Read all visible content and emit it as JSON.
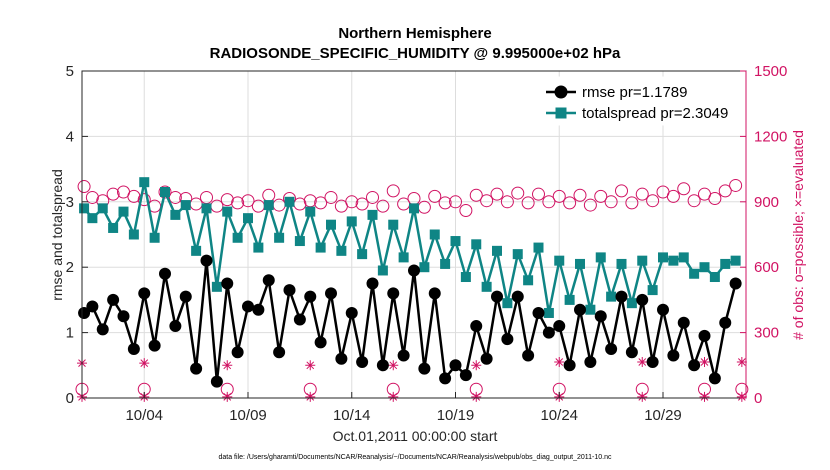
{
  "colors": {
    "rmse": "#000000",
    "spread": "#0f8585",
    "obs": "#d11363",
    "axis": "#262626"
  },
  "chart_data": {
    "type": "line",
    "title": "Northern Hemisphere",
    "subtitle": "RADIOSONDE_SPECIFIC_HUMIDITY @ 9.995000e+02 hPa",
    "xlabel": "Oct.01,2011 00:00:00 start",
    "ylabel": "rmse and totalspread",
    "y2label": "# of obs: o=possible; ×=evaluated",
    "footnote": "data file: /Users/gharamti/Documents/NCAR/Reanalysis/~/Documents/NCAR/Reanalysis/webpub/obs_diag_output_2011-10.nc",
    "xlim": [
      1,
      33
    ],
    "ylim": [
      0,
      5
    ],
    "y2lim": [
      0,
      1500
    ],
    "x_ticks": [
      4,
      9,
      14,
      19,
      24,
      29
    ],
    "x_tick_labels": [
      "10/04",
      "10/09",
      "10/14",
      "10/19",
      "10/24",
      "10/29"
    ],
    "y_ticks": [
      0,
      1,
      2,
      3,
      4,
      5
    ],
    "y_tick_labels": [
      "0",
      "1",
      "2",
      "3",
      "4",
      "5"
    ],
    "y2_ticks": [
      0,
      300,
      600,
      900,
      1200,
      1500
    ],
    "y2_tick_labels": [
      "0",
      "300",
      "600",
      "900",
      "1200",
      "1500"
    ],
    "legend": [
      {
        "label": "rmse pr=1.1789",
        "series": "rmse"
      },
      {
        "label": "totalspread pr=2.3049",
        "series": "totalspread"
      }
    ],
    "legend_position": "top-right",
    "grid": true,
    "series_generation_note": "",
    "series": [
      {
        "name": "rmse",
        "axis": "left",
        "marker": "circle",
        "anchors_x": [
          1.1,
          1.5,
          2,
          2.5,
          3,
          3.5,
          4,
          4.5,
          5,
          5.5,
          6,
          6.5,
          7,
          7.5,
          8,
          8.5,
          9,
          9.5,
          10,
          10.5,
          11,
          11.5,
          12,
          12.5,
          13,
          13.5,
          14,
          14.5,
          15,
          15.5,
          16,
          16.5,
          17,
          17.5,
          18,
          18.5,
          19,
          19.5,
          20,
          20.5,
          21,
          21.5,
          22,
          22.5,
          23,
          23.5,
          24,
          24.5,
          25,
          25.5,
          26,
          26.5,
          27,
          27.5,
          28,
          28.5,
          29,
          29.5,
          30,
          30.5,
          31,
          31.5,
          32,
          32.5
        ],
        "anchors_y": [
          1.3,
          1.4,
          1.05,
          1.5,
          1.25,
          0.75,
          1.6,
          0.8,
          1.9,
          1.1,
          1.55,
          0.45,
          2.1,
          0.25,
          1.75,
          0.7,
          1.4,
          1.35,
          1.8,
          0.7,
          1.65,
          1.2,
          1.55,
          0.85,
          1.6,
          0.6,
          1.3,
          0.55,
          1.75,
          0.5,
          1.6,
          0.65,
          1.95,
          0.45,
          1.6,
          0.3,
          0.5,
          0.35,
          1.1,
          0.6,
          1.55,
          0.9,
          1.55,
          0.65,
          1.3,
          1.0,
          1.1,
          0.5,
          1.35,
          0.55,
          1.25,
          0.75,
          1.55,
          0.7,
          1.5,
          0.55,
          1.35,
          0.65,
          1.15,
          0.5,
          0.95,
          0.3,
          1.15,
          1.75
        ]
      },
      {
        "name": "totalspread",
        "axis": "left",
        "marker": "square",
        "anchors_x": [
          1.1,
          1.5,
          2,
          2.5,
          3,
          3.5,
          4,
          4.5,
          5,
          5.5,
          6,
          6.5,
          7,
          7.5,
          8,
          8.5,
          9,
          9.5,
          10,
          10.5,
          11,
          11.5,
          12,
          12.5,
          13,
          13.5,
          14,
          14.5,
          15,
          15.5,
          16,
          16.5,
          17,
          17.5,
          18,
          18.5,
          19,
          19.5,
          20,
          20.5,
          21,
          21.5,
          22,
          22.5,
          23,
          23.5,
          24,
          24.5,
          25,
          25.5,
          26,
          26.5,
          27,
          27.5,
          28,
          28.5,
          29,
          29.5,
          30,
          30.5,
          31,
          31.5,
          32,
          32.5
        ],
        "anchors_y": [
          2.9,
          2.75,
          2.9,
          2.6,
          2.85,
          2.5,
          3.3,
          2.45,
          3.15,
          2.8,
          2.95,
          2.25,
          2.9,
          1.7,
          2.85,
          2.45,
          2.75,
          2.3,
          2.95,
          2.45,
          3.0,
          2.4,
          2.85,
          2.3,
          2.65,
          2.25,
          2.7,
          2.2,
          2.8,
          1.95,
          2.65,
          2.15,
          2.9,
          2.0,
          2.5,
          2.05,
          2.4,
          1.85,
          2.35,
          1.7,
          2.25,
          1.45,
          2.2,
          1.8,
          2.3,
          1.3,
          2.1,
          1.5,
          2.05,
          1.35,
          2.15,
          1.55,
          2.05,
          1.45,
          2.1,
          1.65,
          2.15,
          2.1,
          2.15,
          1.9,
          2.0,
          1.85,
          2.05,
          2.1
        ]
      },
      {
        "name": "obs_possible",
        "axis": "right",
        "marker": "open-circle",
        "anchors_x": [
          1.1,
          1.5,
          2,
          2.5,
          3,
          3.5,
          4,
          4.5,
          5,
          5.5,
          6,
          6.5,
          7,
          7.5,
          8,
          8.5,
          9,
          9.5,
          10,
          10.5,
          11,
          11.5,
          12,
          12.5,
          13,
          13.5,
          14,
          14.5,
          15,
          15.5,
          16,
          16.5,
          17,
          17.5,
          18,
          18.5,
          19,
          19.5,
          20,
          20.5,
          21,
          21.5,
          22,
          22.5,
          23,
          23.5,
          24,
          24.5,
          25,
          25.5,
          26,
          26.5,
          27,
          27.5,
          28,
          28.5,
          29,
          29.5,
          30,
          30.5,
          31,
          31.5,
          32,
          32.5
        ],
        "anchors_y": [
          970,
          920,
          905,
          935,
          945,
          925,
          910,
          880,
          945,
          920,
          915,
          890,
          920,
          880,
          910,
          895,
          905,
          880,
          930,
          885,
          915,
          890,
          905,
          895,
          920,
          880,
          900,
          890,
          920,
          880,
          950,
          890,
          915,
          875,
          925,
          895,
          900,
          860,
          930,
          905,
          935,
          900,
          940,
          895,
          935,
          900,
          925,
          895,
          930,
          885,
          925,
          900,
          950,
          895,
          935,
          905,
          945,
          925,
          960,
          905,
          935,
          915,
          950,
          975
        ]
      },
      {
        "name": "obs_possible_low",
        "axis": "right",
        "marker": "open-circle",
        "anchors_x": [
          1,
          4,
          8,
          12,
          16,
          20,
          24,
          28,
          31,
          32.8
        ],
        "anchors_y": [
          40,
          40,
          40,
          40,
          40,
          40,
          40,
          40,
          40,
          40
        ]
      },
      {
        "name": "obs_evaluated",
        "axis": "right",
        "marker": "asterisk",
        "anchors_x": [
          1,
          4,
          8,
          12,
          16,
          20,
          24,
          28,
          31,
          32.8
        ],
        "anchors_y": [
          160,
          160,
          150,
          150,
          150,
          150,
          165,
          165,
          165,
          165
        ]
      },
      {
        "name": "obs_evaluated_low",
        "axis": "right",
        "marker": "asterisk",
        "anchors_x": [
          1,
          4,
          8,
          12,
          16,
          20,
          24,
          28,
          31,
          32.8
        ],
        "anchors_y": [
          5,
          5,
          5,
          5,
          5,
          5,
          5,
          5,
          5,
          5
        ]
      }
    ]
  }
}
